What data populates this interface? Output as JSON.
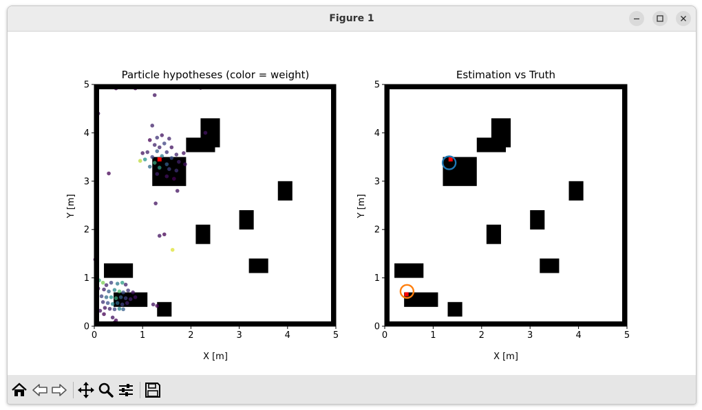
{
  "window": {
    "title": "Figure 1",
    "controls": [
      "minimize-icon",
      "maximize-icon",
      "close-icon"
    ]
  },
  "toolbar": {
    "buttons": [
      "home-icon",
      "back-arrow-icon",
      "forward-arrow-icon",
      "pan-icon",
      "zoom-icon",
      "configure-subplots-icon",
      "save-icon"
    ]
  },
  "colors": {
    "obstacle": "#000000",
    "estimate_blue": "#1f77b4",
    "estimate_orange": "#ff7f0e",
    "truth_red": "#ff0000"
  },
  "chart_data": [
    {
      "type": "scatter",
      "title": "Particle hypotheses (color = weight)",
      "xlabel": "X [m]",
      "ylabel": "Y [m]",
      "xlim": [
        0,
        5
      ],
      "ylim": [
        0,
        5
      ],
      "xticks": [
        "0",
        "1",
        "2",
        "3",
        "4",
        "5"
      ],
      "yticks": [
        "0",
        "1",
        "2",
        "3",
        "4",
        "5"
      ],
      "grid": false,
      "colormap": "viridis",
      "obstacles": [
        {
          "x": 2.2,
          "y": 3.7,
          "w": 0.4,
          "h": 0.6
        },
        {
          "x": 1.9,
          "y": 3.6,
          "w": 0.6,
          "h": 0.3
        },
        {
          "x": 1.2,
          "y": 2.9,
          "w": 0.7,
          "h": 0.6
        },
        {
          "x": 3.8,
          "y": 2.6,
          "w": 0.3,
          "h": 0.4
        },
        {
          "x": 3.0,
          "y": 2.0,
          "w": 0.3,
          "h": 0.4
        },
        {
          "x": 2.1,
          "y": 1.7,
          "w": 0.3,
          "h": 0.4
        },
        {
          "x": 3.2,
          "y": 1.1,
          "w": 0.4,
          "h": 0.3
        },
        {
          "x": 0.2,
          "y": 1.0,
          "w": 0.6,
          "h": 0.3
        },
        {
          "x": 0.4,
          "y": 0.4,
          "w": 0.7,
          "h": 0.3
        },
        {
          "x": 1.3,
          "y": 0.2,
          "w": 0.3,
          "h": 0.3
        }
      ],
      "particles": [
        {
          "x": 0.45,
          "y": 4.92,
          "w": 0.0
        },
        {
          "x": 0.85,
          "y": 4.92,
          "w": 0.0
        },
        {
          "x": 1.25,
          "y": 4.78,
          "w": 0.05
        },
        {
          "x": 2.2,
          "y": 4.93,
          "w": 0.0
        },
        {
          "x": 0.08,
          "y": 4.4,
          "w": 0.05
        },
        {
          "x": 2.3,
          "y": 4.0,
          "w": 0.05
        },
        {
          "x": 1.2,
          "y": 4.15,
          "w": 0.1
        },
        {
          "x": 1.3,
          "y": 3.9,
          "w": 0.15
        },
        {
          "x": 1.4,
          "y": 3.95,
          "w": 0.05
        },
        {
          "x": 1.55,
          "y": 3.88,
          "w": 0.1
        },
        {
          "x": 1.15,
          "y": 3.85,
          "w": 0.0
        },
        {
          "x": 1.25,
          "y": 3.75,
          "w": 0.1
        },
        {
          "x": 1.45,
          "y": 3.78,
          "w": 0.2
        },
        {
          "x": 1.6,
          "y": 3.7,
          "w": 0.05
        },
        {
          "x": 1.35,
          "y": 3.7,
          "w": 0.1
        },
        {
          "x": 1.0,
          "y": 3.58,
          "w": 0.05
        },
        {
          "x": 1.1,
          "y": 3.6,
          "w": 0.1
        },
        {
          "x": 1.3,
          "y": 3.62,
          "w": 0.3
        },
        {
          "x": 1.5,
          "y": 3.6,
          "w": 0.15
        },
        {
          "x": 1.7,
          "y": 3.55,
          "w": 0.1
        },
        {
          "x": 1.85,
          "y": 3.58,
          "w": 0.05
        },
        {
          "x": 1.2,
          "y": 3.5,
          "w": 0.2
        },
        {
          "x": 1.4,
          "y": 3.52,
          "w": 0.4
        },
        {
          "x": 1.6,
          "y": 3.48,
          "w": 0.25
        },
        {
          "x": 0.95,
          "y": 3.42,
          "w": 0.9
        },
        {
          "x": 1.05,
          "y": 3.45,
          "w": 0.5
        },
        {
          "x": 1.25,
          "y": 3.38,
          "w": 0.6
        },
        {
          "x": 1.5,
          "y": 3.35,
          "w": 0.3
        },
        {
          "x": 1.75,
          "y": 3.4,
          "w": 0.1
        },
        {
          "x": 1.88,
          "y": 3.35,
          "w": 0.05
        },
        {
          "x": 1.15,
          "y": 3.3,
          "w": 0.35
        },
        {
          "x": 1.35,
          "y": 3.28,
          "w": 0.55
        },
        {
          "x": 1.55,
          "y": 3.25,
          "w": 0.2
        },
        {
          "x": 1.7,
          "y": 3.22,
          "w": 0.15
        },
        {
          "x": 1.3,
          "y": 3.15,
          "w": 0.1
        },
        {
          "x": 1.5,
          "y": 3.1,
          "w": 0.05
        },
        {
          "x": 1.65,
          "y": 3.05,
          "w": 0.0
        },
        {
          "x": 0.3,
          "y": 3.16,
          "w": 0.0
        },
        {
          "x": 1.72,
          "y": 2.8,
          "w": 0.05
        },
        {
          "x": 1.27,
          "y": 2.54,
          "w": 0.05
        },
        {
          "x": 1.35,
          "y": 1.87,
          "w": 0.05
        },
        {
          "x": 1.45,
          "y": 1.9,
          "w": 0.0
        },
        {
          "x": 1.62,
          "y": 1.58,
          "w": 0.95
        },
        {
          "x": 0.02,
          "y": 1.38,
          "w": 0.0
        },
        {
          "x": 0.05,
          "y": 1.2,
          "w": 0.05
        },
        {
          "x": 0.1,
          "y": 0.95,
          "w": 0.6
        },
        {
          "x": 0.18,
          "y": 0.9,
          "w": 0.8
        },
        {
          "x": 0.25,
          "y": 0.85,
          "w": 0.1
        },
        {
          "x": 0.35,
          "y": 0.9,
          "w": 0.2
        },
        {
          "x": 0.48,
          "y": 0.88,
          "w": 0.4
        },
        {
          "x": 0.58,
          "y": 0.9,
          "w": 0.55
        },
        {
          "x": 0.65,
          "y": 0.86,
          "w": 0.1
        },
        {
          "x": 0.08,
          "y": 0.78,
          "w": 0.05
        },
        {
          "x": 0.2,
          "y": 0.76,
          "w": 0.1
        },
        {
          "x": 0.3,
          "y": 0.72,
          "w": 0.3
        },
        {
          "x": 0.42,
          "y": 0.75,
          "w": 0.45
        },
        {
          "x": 0.52,
          "y": 0.72,
          "w": 0.7
        },
        {
          "x": 0.6,
          "y": 0.7,
          "w": 0.25
        },
        {
          "x": 0.7,
          "y": 0.74,
          "w": 0.15
        },
        {
          "x": 0.8,
          "y": 0.7,
          "w": 0.05
        },
        {
          "x": 0.05,
          "y": 0.66,
          "w": 0.1
        },
        {
          "x": 0.15,
          "y": 0.62,
          "w": 0.2
        },
        {
          "x": 0.25,
          "y": 0.6,
          "w": 0.35
        },
        {
          "x": 0.35,
          "y": 0.6,
          "w": 0.5
        },
        {
          "x": 0.45,
          "y": 0.58,
          "w": 0.6
        },
        {
          "x": 0.55,
          "y": 0.6,
          "w": 0.3
        },
        {
          "x": 0.65,
          "y": 0.58,
          "w": 0.2
        },
        {
          "x": 0.75,
          "y": 0.56,
          "w": 0.1
        },
        {
          "x": 0.85,
          "y": 0.6,
          "w": 0.05
        },
        {
          "x": 0.18,
          "y": 0.5,
          "w": 0.15
        },
        {
          "x": 0.28,
          "y": 0.48,
          "w": 0.25
        },
        {
          "x": 0.38,
          "y": 0.46,
          "w": 0.45
        },
        {
          "x": 0.48,
          "y": 0.48,
          "w": 0.35
        },
        {
          "x": 0.58,
          "y": 0.45,
          "w": 0.2
        },
        {
          "x": 0.68,
          "y": 0.48,
          "w": 0.1
        },
        {
          "x": 0.22,
          "y": 0.38,
          "w": 0.05
        },
        {
          "x": 0.32,
          "y": 0.36,
          "w": 0.1
        },
        {
          "x": 0.42,
          "y": 0.35,
          "w": 0.2
        },
        {
          "x": 0.52,
          "y": 0.36,
          "w": 0.45
        },
        {
          "x": 0.6,
          "y": 0.35,
          "w": 0.3
        },
        {
          "x": 0.12,
          "y": 0.32,
          "w": 0.05
        },
        {
          "x": 0.2,
          "y": 0.25,
          "w": 0.0
        },
        {
          "x": 0.38,
          "y": 0.18,
          "w": 0.05
        },
        {
          "x": 0.45,
          "y": 0.12,
          "w": 0.0
        },
        {
          "x": 0.42,
          "y": 0.08,
          "w": 0.0
        },
        {
          "x": 1.22,
          "y": 0.45,
          "w": 0.05
        },
        {
          "x": 1.3,
          "y": 0.42,
          "w": 0.0
        }
      ],
      "truth": {
        "x": 1.35,
        "y": 3.45
      }
    },
    {
      "type": "scatter",
      "title": "Estimation vs Truth",
      "xlabel": "X [m]",
      "ylabel": "Y [m]",
      "xlim": [
        0,
        5
      ],
      "ylim": [
        0,
        5
      ],
      "xticks": [
        "0",
        "1",
        "2",
        "3",
        "4",
        "5"
      ],
      "yticks": [
        "0",
        "1",
        "2",
        "3",
        "4",
        "5"
      ],
      "grid": false,
      "estimates": [
        {
          "x": 1.33,
          "y": 3.38,
          "color": "#1f77b4"
        },
        {
          "x": 0.46,
          "y": 0.72,
          "color": "#ff7f0e"
        }
      ],
      "truths": [
        {
          "x": 1.36,
          "y": 3.45
        },
        {
          "x": 0.45,
          "y": 0.66
        }
      ]
    }
  ]
}
